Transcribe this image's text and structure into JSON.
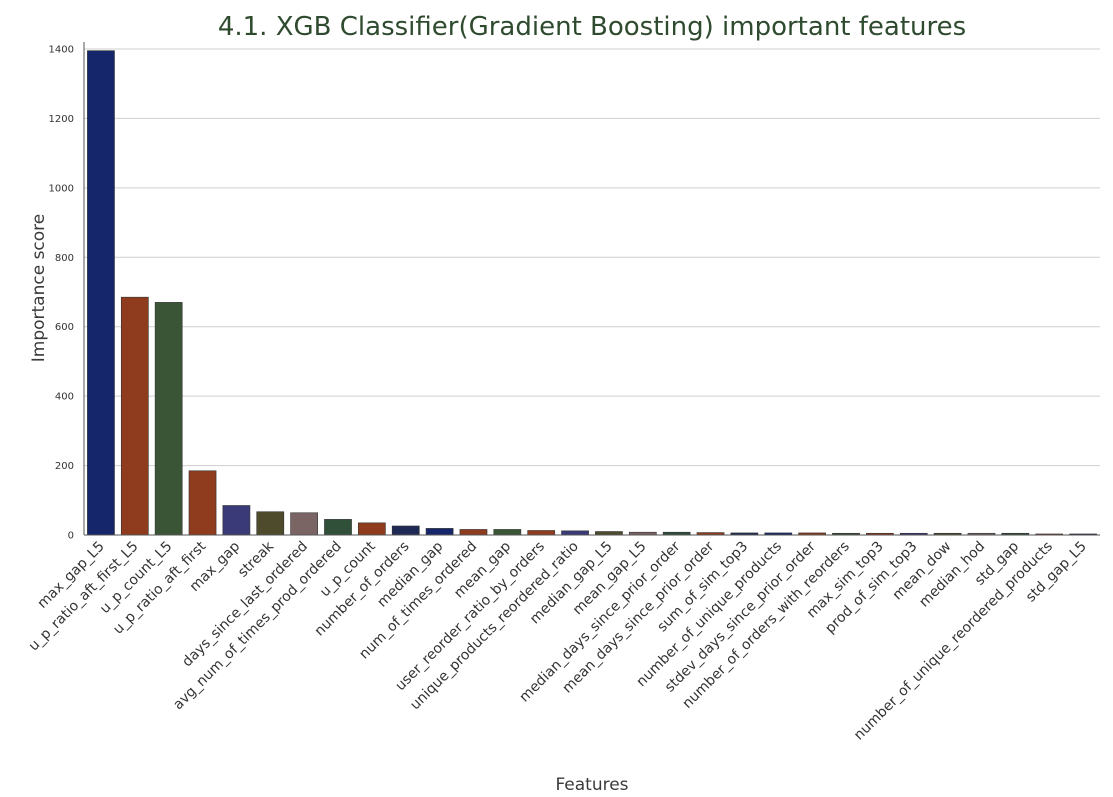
{
  "chart_data": {
    "type": "bar",
    "title": "4.1. XGB Classifier(Gradient Boosting) important features",
    "xlabel": "Features",
    "ylabel": "Importance score",
    "ylim": [
      0,
      1420
    ],
    "yticks": [
      0,
      200,
      400,
      600,
      800,
      1000,
      1200,
      1400
    ],
    "grid": "horizontal",
    "categories": [
      "max_gap_L5",
      "u_p_ratio_aft_first_L5",
      "u_p_count_L5",
      "u_p_ratio_aft_first",
      "max_gap",
      "streak",
      "days_since_last_ordered",
      "avg_num_of_times_prod_ordered",
      "u_p_count",
      "number_of_orders",
      "median_gap",
      "num_of_times_ordered",
      "mean_gap",
      "user_reorder_ratio_by_orders",
      "unique_products_reordered_ratio",
      "median_gap_L5",
      "mean_gap_L5",
      "median_days_since_prior_order",
      "mean_days_since_prior_order",
      "sum_of_sim_top3",
      "number_of_unique_products",
      "stdev_days_since_prior_order",
      "number_of_orders_with_reorders",
      "max_sim_top3",
      "prod_of_sim_top3",
      "mean_dow",
      "median_hod",
      "std_gap",
      "number_of_unique_reordered_products",
      "std_gap_L5"
    ],
    "values": [
      1395,
      685,
      670,
      185,
      85,
      67,
      64,
      45,
      35,
      26,
      19,
      16,
      16,
      13,
      12,
      10,
      8,
      8,
      7,
      6,
      6,
      6,
      5,
      5,
      5,
      5,
      5,
      5,
      3,
      3
    ],
    "colors": [
      "#16266b",
      "#8e3b1e",
      "#3a5436",
      "#8e3b1e",
      "#3a3a78",
      "#4e4a2c",
      "#7a6464",
      "#30503a",
      "#8e3b1e",
      "#1e2a55",
      "#16266b",
      "#8e3b1e",
      "#3a5436",
      "#8e3b1e",
      "#3a3a78",
      "#4e4a2c",
      "#7a6464",
      "#30503a",
      "#8e3b1e",
      "#1e2a55",
      "#16266b",
      "#8e3b1e",
      "#3a5436",
      "#8e3b1e",
      "#3a3a78",
      "#4e4a2c",
      "#7a6464",
      "#30503a",
      "#8e3b1e",
      "#1e2a55"
    ]
  }
}
